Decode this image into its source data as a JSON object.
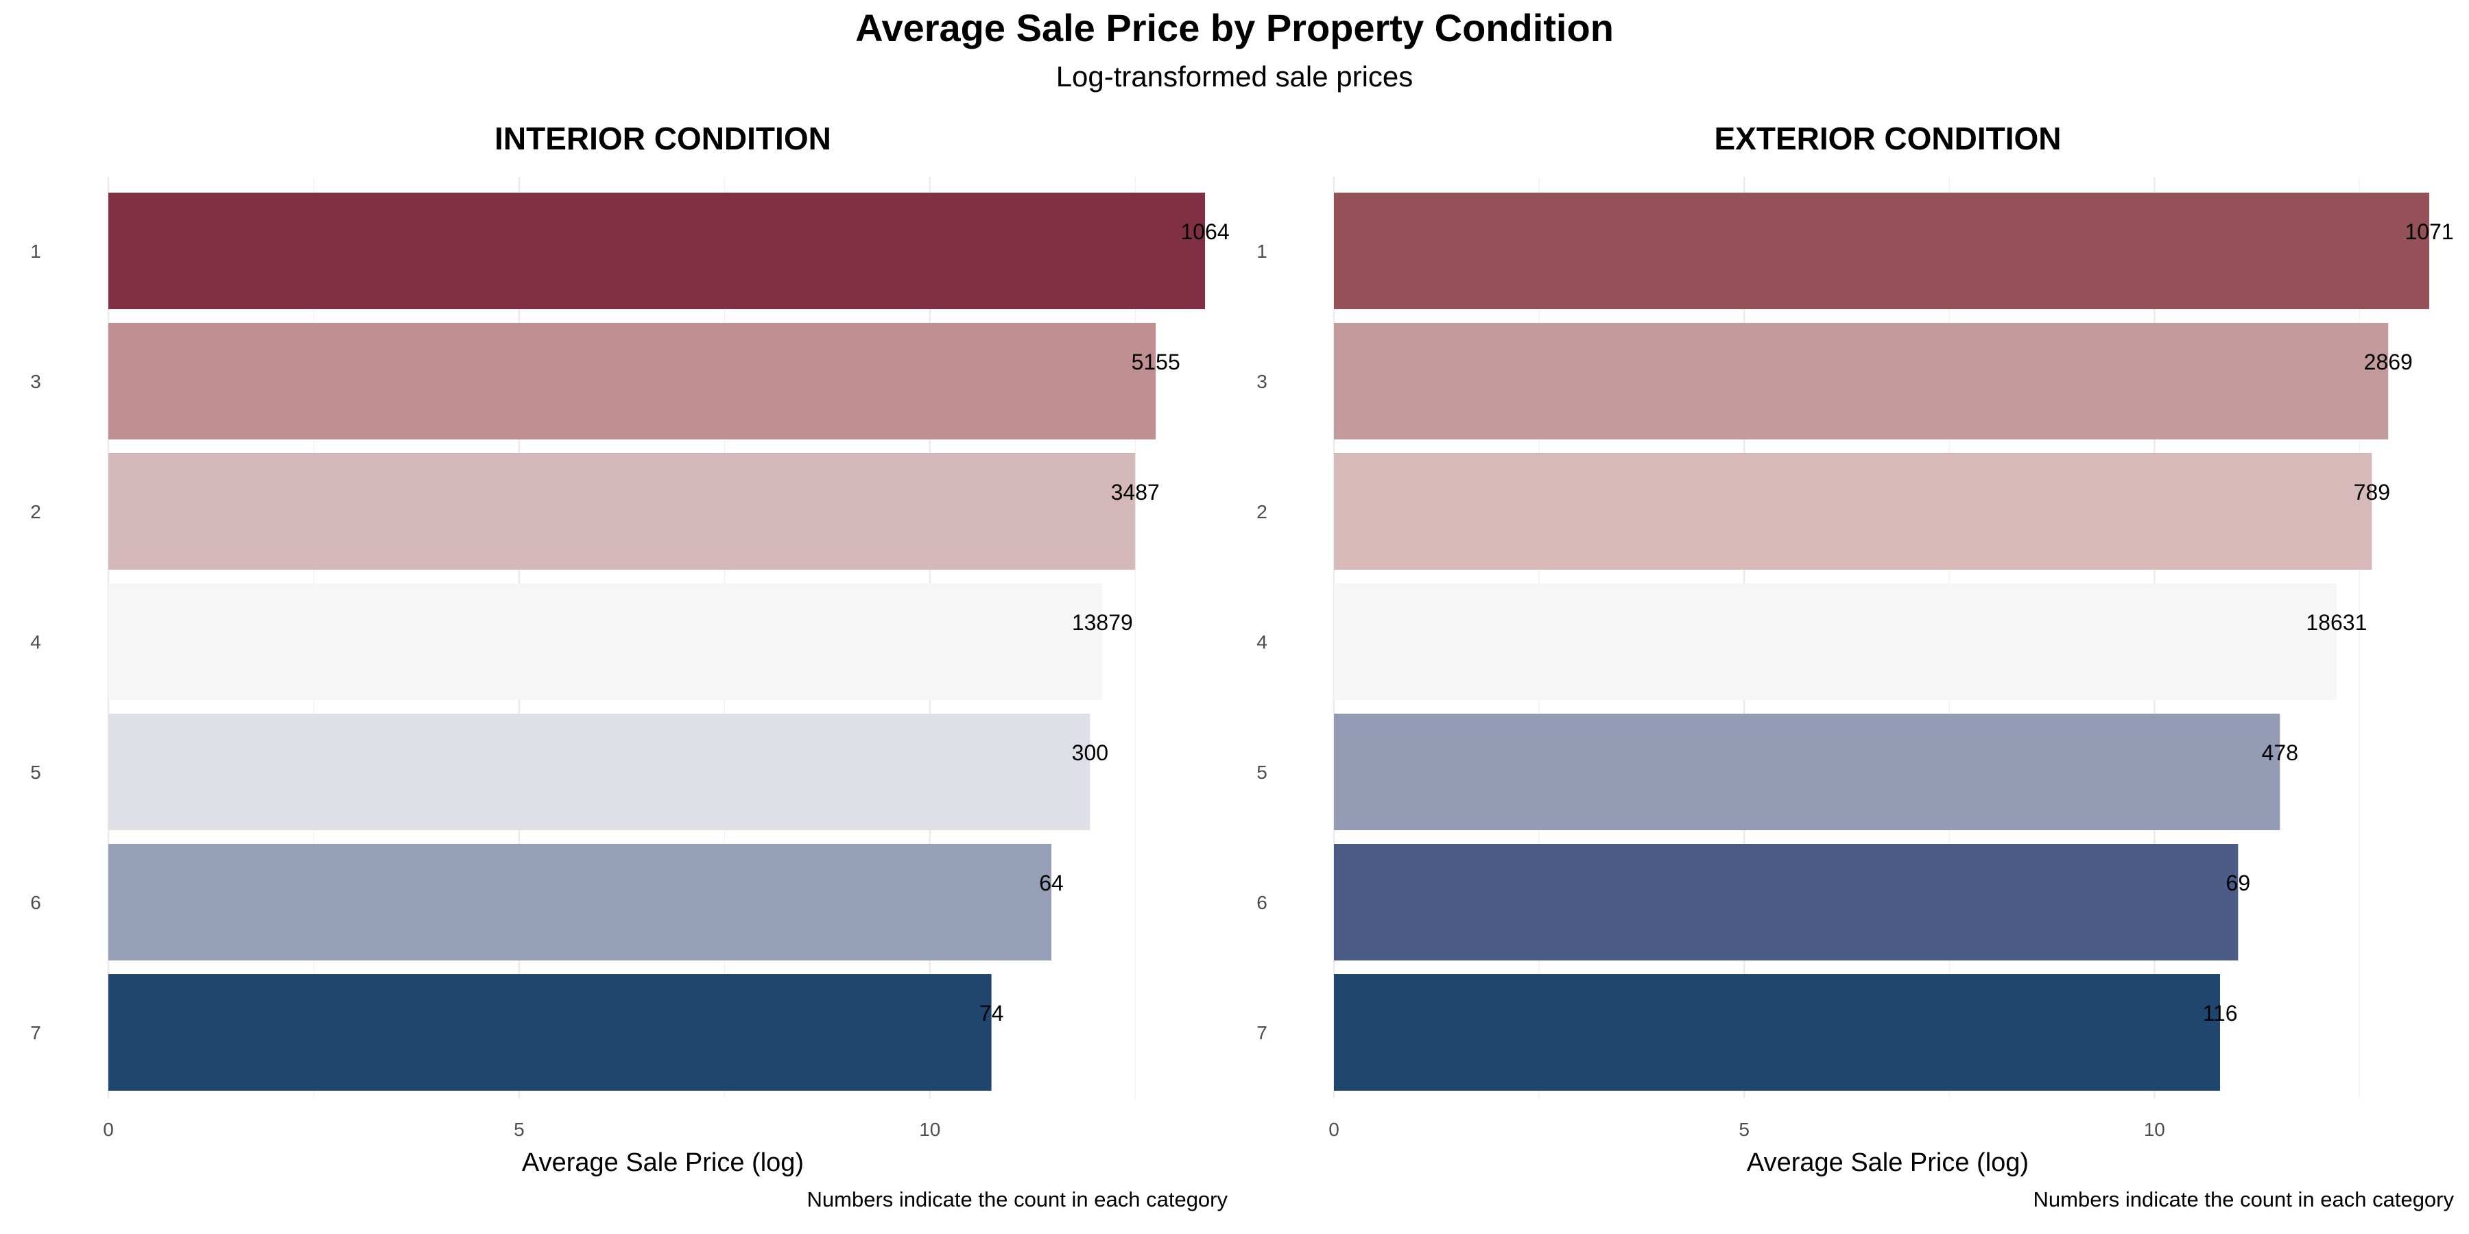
{
  "header": {
    "title": "Average Sale Price by Property Condition",
    "subtitle": "Log-transformed sale prices"
  },
  "chart_data": [
    {
      "type": "bar",
      "orientation": "horizontal",
      "title": "INTERIOR CONDITION",
      "xlabel": "Average Sale Price (log)",
      "ylabel": "",
      "caption": "Numbers indicate the count in each category",
      "xlim": [
        0,
        13.5
      ],
      "xticks": [
        0,
        5,
        10
      ],
      "grid": true,
      "categories": [
        "1",
        "3",
        "2",
        "4",
        "5",
        "6",
        "7"
      ],
      "values": [
        13.35,
        12.75,
        12.5,
        12.1,
        11.95,
        11.48,
        10.75
      ],
      "counts": [
        "1064",
        "5155",
        "3487",
        "13879",
        "300",
        "64",
        "74"
      ],
      "colors": [
        "#813043",
        "#bf8f91",
        "#d5b8b9",
        "#f6f6f6",
        "#dfe0e7",
        "#969fb8",
        "#204670"
      ]
    },
    {
      "type": "bar",
      "orientation": "horizontal",
      "title": "EXTERIOR CONDITION",
      "xlabel": "Average Sale Price (log)",
      "ylabel": "",
      "caption": "Numbers indicate the count in each category",
      "xlim": [
        0,
        13.5
      ],
      "xticks": [
        0,
        5,
        10
      ],
      "grid": true,
      "categories": [
        "1",
        "3",
        "2",
        "4",
        "5",
        "6",
        "7"
      ],
      "values": [
        13.35,
        12.85,
        12.65,
        12.22,
        11.53,
        11.02,
        10.8
      ],
      "counts": [
        "1071",
        "2869",
        "789",
        "18631",
        "478",
        "69",
        "116"
      ],
      "colors": [
        "#955158",
        "#c49b9c",
        "#d7b9ba",
        "#f6f6f6",
        "#939bb5",
        "#4a5c86",
        "#204670"
      ]
    }
  ]
}
